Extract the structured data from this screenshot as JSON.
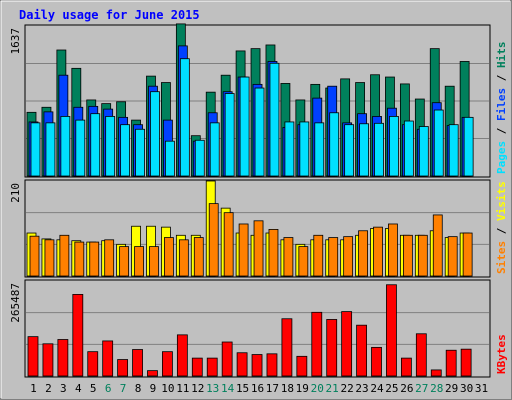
{
  "title": "Daily usage for June 2015",
  "colors": {
    "background": "#c0c0c0",
    "plot": "#c0c0c0",
    "title": "#0000ff",
    "hits": "#00805c",
    "files": "#0040ff",
    "pages": "#00e0ff",
    "visits": "#ffff00",
    "sites": "#ff8000",
    "kbytes": "#ff0000",
    "weekend": "#00805c",
    "weekday": "#000000"
  },
  "days": [
    "1",
    "2",
    "3",
    "4",
    "5",
    "6",
    "7",
    "8",
    "9",
    "10",
    "11",
    "12",
    "13",
    "14",
    "15",
    "16",
    "17",
    "18",
    "19",
    "20",
    "21",
    "22",
    "23",
    "24",
    "25",
    "26",
    "27",
    "28",
    "29",
    "30",
    "31"
  ],
  "weekend_days": [
    6,
    7,
    13,
    14,
    20,
    21,
    27,
    28
  ],
  "legend_top": {
    "pages": "Pages",
    "sep1": " / ",
    "files": "Files",
    "sep2": " / ",
    "hits": "Hits"
  },
  "legend_mid": {
    "sites": "Sites",
    "sep": " / ",
    "visits": "Visits"
  },
  "legend_bottom": {
    "kbytes": "KBytes"
  },
  "chart_data": [
    {
      "type": "bar",
      "panel": "hits-files-pages",
      "ymax_label": "1637",
      "ylim": [
        0,
        1637
      ],
      "categories": [
        "1",
        "2",
        "3",
        "4",
        "5",
        "6",
        "7",
        "8",
        "9",
        "10",
        "11",
        "12",
        "13",
        "14",
        "15",
        "16",
        "17",
        "18",
        "19",
        "20",
        "21",
        "22",
        "23",
        "24",
        "25",
        "26",
        "27",
        "28",
        "29",
        "30",
        "31"
      ],
      "series": [
        {
          "name": "Hits",
          "values": [
            695,
            750,
            1375,
            1175,
            830,
            790,
            810,
            610,
            1090,
            1020,
            1660,
            440,
            915,
            1100,
            1365,
            1390,
            1430,
            1010,
            830,
            1000,
            960,
            1060,
            1020,
            1105,
            1080,
            1005,
            840,
            1390,
            980,
            1250,
            null
          ]
        },
        {
          "name": "Files",
          "values": [
            590,
            700,
            1100,
            750,
            760,
            730,
            640,
            560,
            980,
            610,
            1420,
            380,
            690,
            920,
            1080,
            1000,
            1250,
            530,
            560,
            850,
            980,
            580,
            680,
            650,
            740,
            560,
            510,
            800,
            550,
            640,
            null
          ]
        },
        {
          "name": "Pages",
          "values": [
            580,
            580,
            650,
            610,
            680,
            650,
            560,
            510,
            920,
            380,
            1280,
            390,
            580,
            900,
            1080,
            960,
            1230,
            590,
            590,
            580,
            690,
            560,
            570,
            575,
            650,
            600,
            540,
            720,
            560,
            640,
            null
          ]
        }
      ]
    },
    {
      "type": "bar",
      "panel": "visits-sites",
      "ymax_label": "210",
      "ylim": [
        0,
        210
      ],
      "categories": [
        "1",
        "2",
        "3",
        "4",
        "5",
        "6",
        "7",
        "8",
        "9",
        "10",
        "11",
        "12",
        "13",
        "14",
        "15",
        "16",
        "17",
        "18",
        "19",
        "20",
        "21",
        "22",
        "23",
        "24",
        "25",
        "26",
        "27",
        "28",
        "29",
        "30",
        "31"
      ],
      "series": [
        {
          "name": "Visits",
          "values": [
            95,
            82,
            80,
            78,
            75,
            78,
            70,
            110,
            110,
            108,
            90,
            90,
            210,
            150,
            95,
            90,
            95,
            80,
            70,
            80,
            80,
            80,
            90,
            105,
            105,
            90,
            90,
            100,
            85,
            95,
            null
          ]
        },
        {
          "name": "Sites",
          "values": [
            88,
            80,
            90,
            75,
            75,
            80,
            65,
            65,
            65,
            85,
            80,
            85,
            160,
            140,
            115,
            122,
            103,
            85,
            65,
            90,
            85,
            87,
            100,
            108,
            115,
            90,
            90,
            135,
            87,
            95,
            null
          ]
        }
      ]
    },
    {
      "type": "bar",
      "panel": "kbytes",
      "ymax_label": "265487",
      "ylim": [
        0,
        265487
      ],
      "categories": [
        "1",
        "2",
        "3",
        "4",
        "5",
        "6",
        "7",
        "8",
        "9",
        "10",
        "11",
        "12",
        "13",
        "14",
        "15",
        "16",
        "17",
        "18",
        "19",
        "20",
        "21",
        "22",
        "23",
        "24",
        "25",
        "26",
        "27",
        "28",
        "29",
        "30",
        "31"
      ],
      "series": [
        {
          "name": "KBytes",
          "values": [
            110000,
            90000,
            102000,
            228000,
            68000,
            98000,
            46000,
            74000,
            15000,
            68000,
            115000,
            50000,
            50000,
            95000,
            65000,
            60000,
            62000,
            160000,
            55000,
            178000,
            158000,
            180000,
            142000,
            80000,
            255000,
            50000,
            118000,
            17000,
            72000,
            75000,
            null
          ]
        }
      ]
    }
  ]
}
